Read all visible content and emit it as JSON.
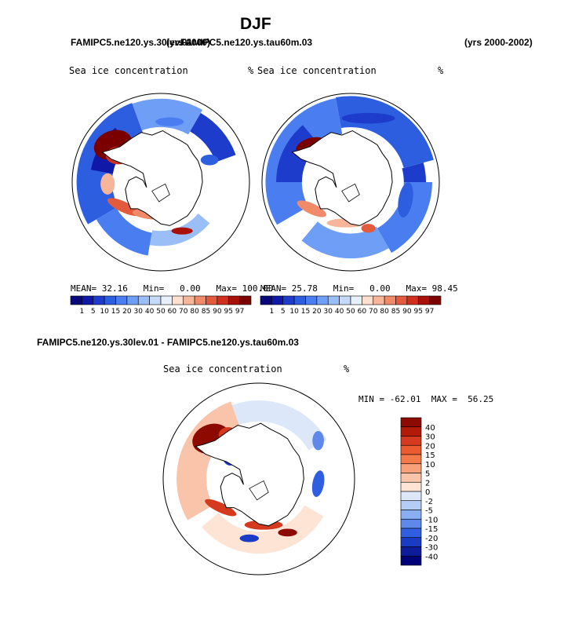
{
  "page": {
    "season": "DJF",
    "case_title": "FAMIPC5.ne120.ys.30lev.01",
    "case_title_2": "FAMIPC5.ne120.ys.tau60m.03",
    "years_label_1": "(yrs 2000)",
    "years_label_2": "(yrs 2000-2002)",
    "diff_title": "FAMIPC5.ne120.ys.30lev.01 - FAMIPC5.ne120.ys.tau60m.03"
  },
  "colors": {
    "coast": "#000000",
    "land": "#ffffff",
    "deep_red": "#8c0a00",
    "red": "#d6301e",
    "light_red": "#f7a98e",
    "white": "#ffffff",
    "light_blue": "#9dbcf5",
    "blue": "#2f5fe0",
    "deep_blue": "#10127a"
  },
  "chart_data": [
    {
      "type": "heatmap",
      "panel": "model-left",
      "title": "Sea ice concentration",
      "units": "%",
      "projection": "south polar stereographic",
      "stats": {
        "mean_label": "MEAN=",
        "mean": "32.16",
        "min_label": "Min=",
        "min": "0.00",
        "max_label": "Max=",
        "max": "100.00"
      },
      "levels": [
        "1",
        "5",
        "10",
        "15",
        "20",
        "30",
        "40",
        "50",
        "60",
        "70",
        "80",
        "85",
        "90",
        "95",
        "97"
      ],
      "colors": [
        "#08087a",
        "#1018a8",
        "#1e3ccc",
        "#2e5ee0",
        "#4a7ef0",
        "#6e9ef6",
        "#9abef8",
        "#c4daf8",
        "#e8f0fa",
        "#fde0d0",
        "#f7b59a",
        "#f08a68",
        "#e45a3c",
        "#d2301e",
        "#a8100a",
        "#7a0000"
      ]
    },
    {
      "type": "heatmap",
      "panel": "model-right",
      "title": "Sea ice concentration",
      "units": "%",
      "projection": "south polar stereographic",
      "stats": {
        "mean_label": "MEAN=",
        "mean": "25.78",
        "min_label": "Min=",
        "min": "0.00",
        "max_label": "Max=",
        "max": "98.45"
      },
      "levels": [
        "1",
        "5",
        "10",
        "15",
        "20",
        "30",
        "40",
        "50",
        "60",
        "70",
        "80",
        "85",
        "90",
        "95",
        "97"
      ],
      "colors": [
        "#08087a",
        "#1018a8",
        "#1e3ccc",
        "#2e5ee0",
        "#4a7ef0",
        "#6e9ef6",
        "#9abef8",
        "#c4daf8",
        "#e8f0fa",
        "#fde0d0",
        "#f7b59a",
        "#f08a68",
        "#e45a3c",
        "#d2301e",
        "#a8100a",
        "#7a0000"
      ]
    },
    {
      "type": "heatmap",
      "panel": "difference",
      "title": "Sea ice concentration",
      "units": "%",
      "projection": "south polar stereographic",
      "stats": {
        "min_label": "MIN =",
        "min": "-62.01",
        "max_label": "MAX =",
        "max": "56.25"
      },
      "levels": [
        "40",
        "30",
        "20",
        "15",
        "10",
        "5",
        "2",
        "0",
        "-2",
        "-5",
        "-10",
        "-15",
        "-20",
        "-30",
        "-40"
      ],
      "colors": [
        "#8c0a00",
        "#b41a08",
        "#d63a1e",
        "#ec5a30",
        "#f47a4a",
        "#f7a07a",
        "#fac4aa",
        "#fde4d4",
        "#dce8fa",
        "#b4cdf6",
        "#8aaef2",
        "#5e88ea",
        "#2f5fe0",
        "#1a3cc4",
        "#0c1c9a",
        "#000078"
      ]
    }
  ]
}
